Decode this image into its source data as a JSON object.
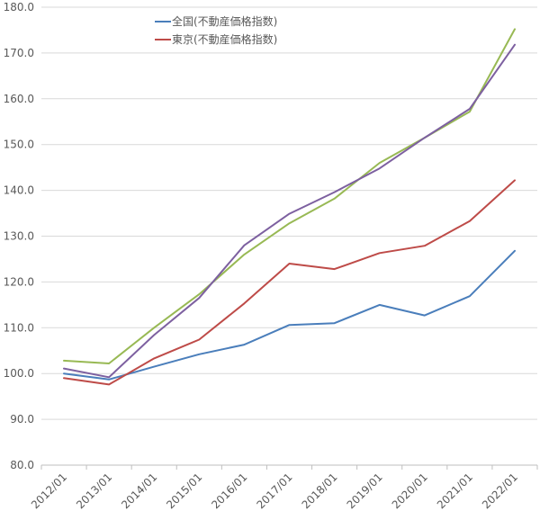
{
  "chart_data": {
    "type": "line",
    "title": "",
    "xlabel": "",
    "ylabel": "",
    "ylim": [
      80,
      180
    ],
    "yticks": [
      "80.0",
      "90.0",
      "100.0",
      "110.0",
      "120.0",
      "130.0",
      "140.0",
      "150.0",
      "160.0",
      "170.0",
      "180.0"
    ],
    "categories": [
      "2012/01",
      "2013/01",
      "2014/01",
      "2015/01",
      "2016/01",
      "2017/01",
      "2018/01",
      "2019/01",
      "2020/01",
      "2021/01",
      "2022/01"
    ],
    "legend_position": "top-left",
    "series": [
      {
        "name": "全国(不動産価格指数)",
        "color": "#4a7ebb",
        "values": [
          100.0,
          98.7,
          101.5,
          104.2,
          106.3,
          110.6,
          111.0,
          115.0,
          112.7,
          116.9,
          126.8
        ],
        "in_legend": true
      },
      {
        "name": "東京(不動産価格指数)",
        "color": "#be4b48",
        "values": [
          99.0,
          97.6,
          103.3,
          107.4,
          115.3,
          124.0,
          122.8,
          126.3,
          127.9,
          133.3,
          142.2
        ],
        "in_legend": true
      },
      {
        "name": "",
        "color": "#98b954",
        "values": [
          102.8,
          102.2,
          110.0,
          117.3,
          126.0,
          132.8,
          138.2,
          146.0,
          151.5,
          157.2,
          175.2
        ],
        "in_legend": false
      },
      {
        "name": "",
        "color": "#7d60a0",
        "values": [
          101.1,
          99.2,
          108.4,
          116.5,
          128.0,
          134.9,
          139.6,
          144.8,
          151.5,
          157.8,
          171.8
        ],
        "in_legend": false
      }
    ]
  }
}
